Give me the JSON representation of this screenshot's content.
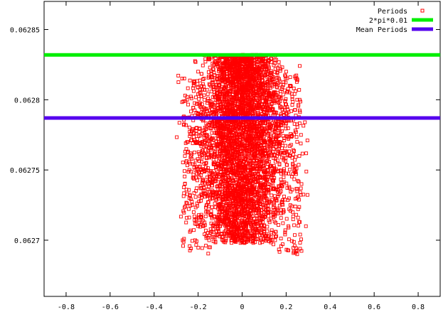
{
  "chart_data": {
    "type": "scatter",
    "title": "",
    "xlabel": "",
    "ylabel": "",
    "xlim": [
      -0.9,
      0.9
    ],
    "ylim": [
      0.06266,
      0.06287
    ],
    "xticks": [
      -0.8,
      -0.6,
      -0.4,
      -0.2,
      0,
      0.2,
      0.4,
      0.6,
      0.8
    ],
    "xtick_labels": [
      "-0.8",
      "-0.6",
      "-0.4",
      "-0.2",
      "0",
      "0.2",
      "0.4",
      "0.6",
      "0.8"
    ],
    "yticks": [
      0.0627,
      0.06275,
      0.0628,
      0.06285
    ],
    "ytick_labels": [
      "0.0627",
      "0.06275",
      "0.0628",
      "0.06285"
    ],
    "grid": false,
    "legend_position": "top-right",
    "series": [
      {
        "name": "Periods",
        "kind": "points",
        "marker": "open-square",
        "color": "#ff0000",
        "description_note": "dense cloud, x in about [-0.28, 0.3], y in about [0.06269, 0.062832]",
        "points": [
          [
            0.0,
            0.06283
          ],
          [
            -0.08,
            0.06283
          ],
          [
            0.08,
            0.06283
          ],
          [
            -0.2,
            0.06282
          ],
          [
            0.2,
            0.06282
          ],
          [
            -0.22,
            0.06281
          ],
          [
            0.22,
            0.06281
          ],
          [
            -0.25,
            0.0628
          ],
          [
            0.25,
            0.0628
          ],
          [
            -0.2,
            0.06279
          ],
          [
            0.2,
            0.06279
          ],
          [
            -0.25,
            0.06277
          ],
          [
            0.25,
            0.06277
          ],
          [
            -0.26,
            0.06276
          ],
          [
            0.26,
            0.06276
          ],
          [
            -0.24,
            0.06275
          ],
          [
            0.24,
            0.06275
          ],
          [
            -0.26,
            0.06274
          ],
          [
            0.27,
            0.06274
          ],
          [
            -0.24,
            0.06273
          ],
          [
            0.25,
            0.06273
          ],
          [
            -0.22,
            0.06272
          ],
          [
            0.23,
            0.06272
          ],
          [
            -0.2,
            0.06271
          ],
          [
            0.21,
            0.06271
          ],
          [
            -0.27,
            0.0627
          ],
          [
            0.29,
            0.06271
          ],
          [
            0.25,
            0.06269
          ],
          [
            -0.15,
            0.0627
          ],
          [
            0.15,
            0.0627
          ],
          [
            0.0,
            0.0627
          ],
          [
            -0.1,
            0.06271
          ],
          [
            0.1,
            0.06271
          ],
          [
            0.0,
            0.06276
          ],
          [
            0.0,
            0.0628
          ]
        ]
      },
      {
        "name": "2*pi*0.01",
        "kind": "hline",
        "y": 0.0628319,
        "color": "#00ee00"
      },
      {
        "name": "Mean Periods",
        "kind": "hline",
        "y": 0.062787,
        "color": "#5500ee"
      }
    ]
  }
}
